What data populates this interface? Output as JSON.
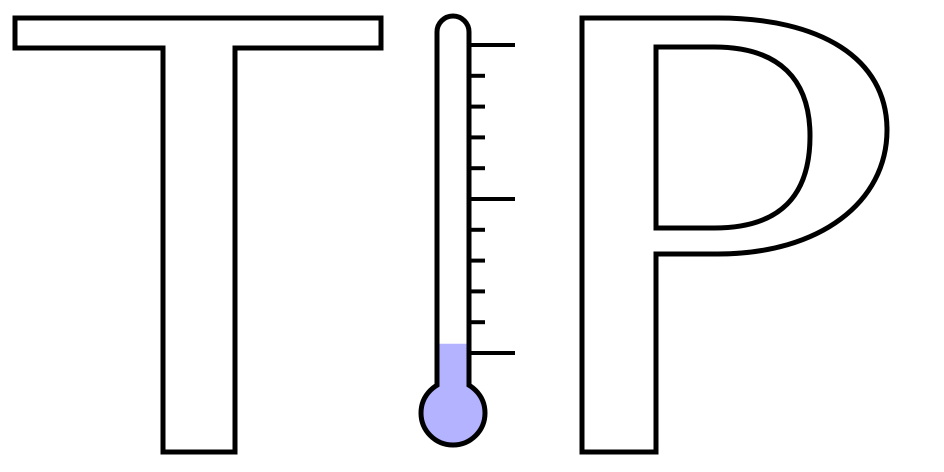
{
  "logo": {
    "letters": [
      "T",
      "I",
      "P"
    ],
    "thermometer": {
      "level_fraction": 0.03,
      "fill_color": "#b3b3ff",
      "outline_color": "#000000",
      "major_ticks": 3,
      "minor_ticks_between": 4
    }
  }
}
